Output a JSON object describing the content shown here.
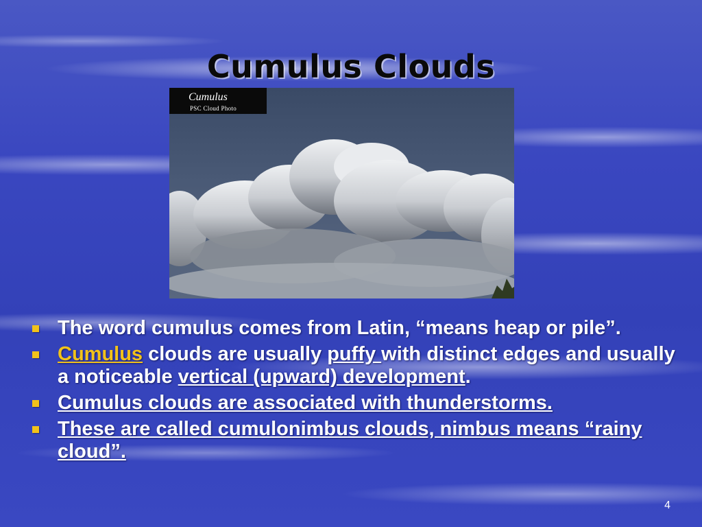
{
  "slide": {
    "title": "Cumulus Clouds",
    "number": "4"
  },
  "photo": {
    "label_title": "Cumulus",
    "label_subtitle": "PSC Cloud Photo"
  },
  "bullets": [
    {
      "segments": [
        {
          "text": "The word cumulus comes from Latin, “means heap or pile”.",
          "style": "plain"
        }
      ]
    },
    {
      "segments": [
        {
          "text": "Cumulus",
          "style": "highlight"
        },
        {
          "text": " clouds are usually ",
          "style": "plain"
        },
        {
          "text": "puffy ",
          "style": "underline"
        },
        {
          "text": " with distinct edges and usually a noticeable ",
          "style": "plain"
        },
        {
          "text": "vertical (upward) development",
          "style": "underline"
        },
        {
          "text": ".",
          "style": "plain"
        }
      ]
    },
    {
      "segments": [
        {
          "text": "Cumulus clouds are associated with thunderstorms.",
          "style": "underline"
        }
      ]
    },
    {
      "segments": [
        {
          "text": "These are called cumulonimbus clouds, nimbus means “rainy cloud”.",
          "style": "underline"
        }
      ]
    }
  ],
  "colors": {
    "background": "#3a47c0",
    "bullet_marker": "#f2c21a",
    "highlight_text": "#f2c21a",
    "body_text": "#ffffff",
    "title_text": "#0a0a0a"
  },
  "icons": {
    "bullet": "square-bullet-icon"
  }
}
